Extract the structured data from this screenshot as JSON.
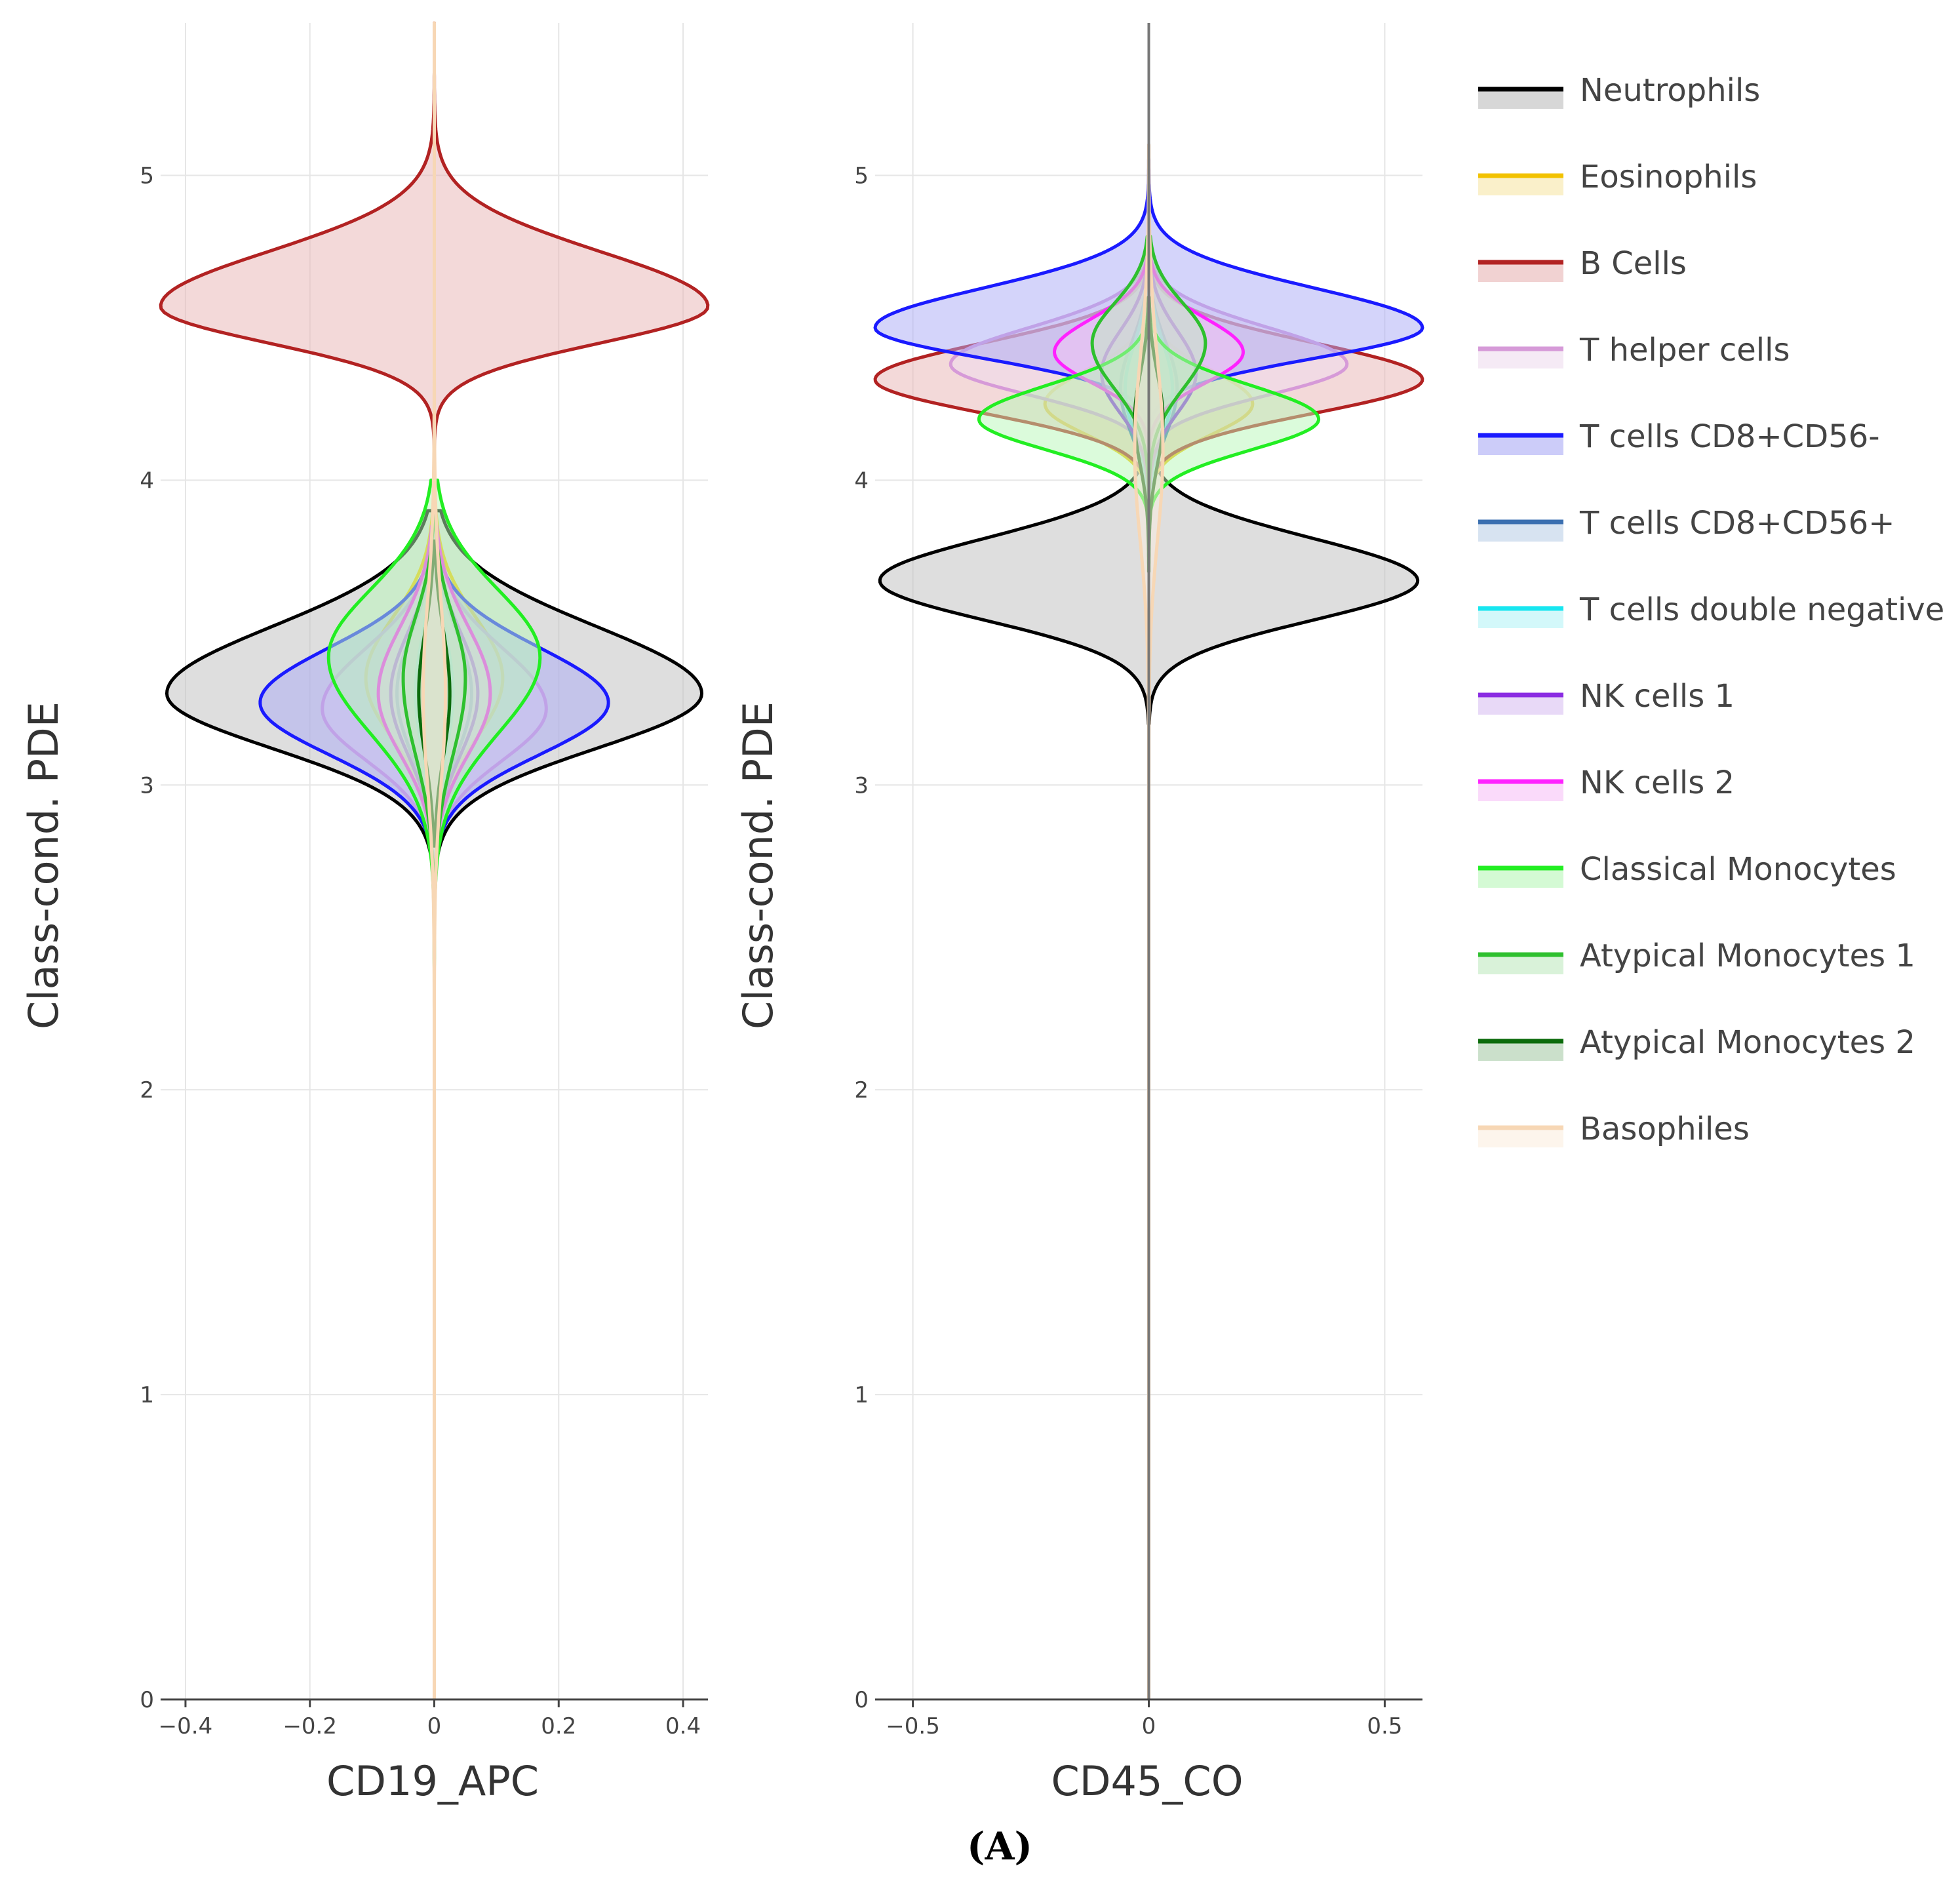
{
  "caption": "(A)",
  "chart_data": [
    {
      "type": "violin",
      "feature": "CD19_APC",
      "xlabel": "CD19_APC",
      "ylabel": "Class-cond. PDE",
      "xlim": [
        -0.44,
        0.44
      ],
      "ylim": [
        0,
        5.5
      ],
      "xticks": [
        -0.4,
        -0.2,
        0,
        0.2,
        0.4
      ],
      "xtick_labels": [
        "−0.4",
        "−0.2",
        "0",
        "0.2",
        "0.4"
      ],
      "yticks": [
        0,
        1,
        2,
        3,
        4,
        5
      ],
      "ytick_labels": [
        "0",
        "1",
        "2",
        "3",
        "4",
        "5"
      ],
      "grid": true,
      "series": [
        {
          "name": "Neutrophils",
          "mode": 3.3,
          "halfwidth": 0.43,
          "lo": 2.7,
          "hi": 3.9,
          "sl": 0.18,
          "su": 0.22
        },
        {
          "name": "Eosinophils",
          "mode": 3.35,
          "halfwidth": 0.11,
          "lo": 2.8,
          "hi": 3.9,
          "sl": 0.2,
          "su": 0.2
        },
        {
          "name": "B Cells",
          "mode": 4.57,
          "halfwidth": 0.44,
          "lo": 4.0,
          "hi": 5.5,
          "sl": 0.12,
          "su": 0.18
        },
        {
          "name": "T helper cells",
          "mode": 3.25,
          "halfwidth": 0.18,
          "lo": 2.75,
          "hi": 3.8,
          "sl": 0.17,
          "su": 0.2
        },
        {
          "name": "T cells CD8+CD56-",
          "mode": 3.27,
          "halfwidth": 0.28,
          "lo": 2.75,
          "hi": 3.75,
          "sl": 0.17,
          "su": 0.18
        },
        {
          "name": "T cells CD8+CD56+",
          "mode": 3.3,
          "halfwidth": 0.06,
          "lo": 2.8,
          "hi": 3.8,
          "sl": 0.2,
          "su": 0.2
        },
        {
          "name": "T cells double negative",
          "mode": 3.3,
          "halfwidth": 0.03,
          "lo": 2.8,
          "hi": 3.8,
          "sl": 0.2,
          "su": 0.2
        },
        {
          "name": "NK cells 1",
          "mode": 3.3,
          "halfwidth": 0.07,
          "lo": 2.8,
          "hi": 3.85,
          "sl": 0.2,
          "su": 0.2
        },
        {
          "name": "NK cells 2",
          "mode": 3.3,
          "halfwidth": 0.09,
          "lo": 2.75,
          "hi": 3.85,
          "sl": 0.2,
          "su": 0.22
        },
        {
          "name": "Classical Monocytes",
          "mode": 3.42,
          "halfwidth": 0.17,
          "lo": 2.0,
          "hi": 4.0,
          "sl": 0.25,
          "su": 0.22
        },
        {
          "name": "Atypical Monocytes 1",
          "mode": 3.35,
          "halfwidth": 0.05,
          "lo": 2.3,
          "hi": 3.9,
          "sl": 0.25,
          "su": 0.2
        },
        {
          "name": "Atypical Monocytes 2",
          "mode": 3.3,
          "halfwidth": 0.025,
          "lo": 2.8,
          "hi": 3.8,
          "sl": 0.2,
          "su": 0.2
        },
        {
          "name": "Basophiles",
          "mode": 3.3,
          "halfwidth": 0.018,
          "lo": 0.0,
          "hi": 5.5,
          "sl": 0.3,
          "su": 0.3
        }
      ]
    },
    {
      "type": "violin",
      "feature": "CD45_CO",
      "xlabel": "CD45_CO",
      "ylabel": "Class-cond. PDE",
      "xlim": [
        -0.58,
        0.58
      ],
      "ylim": [
        0,
        5.5
      ],
      "xticks": [
        -0.5,
        0,
        0.5
      ],
      "xtick_labels": [
        "−0.5",
        "0",
        "0.5"
      ],
      "yticks": [
        0,
        1,
        2,
        3,
        4,
        5
      ],
      "ytick_labels": [
        "0",
        "1",
        "2",
        "3",
        "4",
        "5"
      ],
      "grid": true,
      "series": [
        {
          "name": "Neutrophils",
          "mode": 3.67,
          "halfwidth": 0.57,
          "lo": 3.2,
          "hi": 4.1,
          "sl": 0.13,
          "su": 0.14
        },
        {
          "name": "Eosinophils",
          "mode": 4.25,
          "halfwidth": 0.22,
          "lo": 3.85,
          "hi": 4.6,
          "sl": 0.1,
          "su": 0.11
        },
        {
          "name": "B Cells",
          "mode": 4.33,
          "halfwidth": 0.58,
          "lo": 3.95,
          "hi": 4.8,
          "sl": 0.11,
          "su": 0.12
        },
        {
          "name": "T helper cells",
          "mode": 4.38,
          "halfwidth": 0.42,
          "lo": 4.0,
          "hi": 4.85,
          "sl": 0.1,
          "su": 0.12
        },
        {
          "name": "T cells CD8+CD56-",
          "mode": 4.5,
          "halfwidth": 0.58,
          "lo": 4.1,
          "hi": 5.1,
          "sl": 0.1,
          "su": 0.13
        },
        {
          "name": "T cells CD8+CD56+",
          "mode": 4.3,
          "halfwidth": 0.06,
          "lo": 3.8,
          "hi": 4.8,
          "sl": 0.15,
          "su": 0.15
        },
        {
          "name": "T cells double negative",
          "mode": 4.3,
          "halfwidth": 0.05,
          "lo": 3.8,
          "hi": 4.8,
          "sl": 0.15,
          "su": 0.15
        },
        {
          "name": "NK cells 1",
          "mode": 4.35,
          "halfwidth": 0.1,
          "lo": 3.9,
          "hi": 4.85,
          "sl": 0.13,
          "su": 0.14
        },
        {
          "name": "NK cells 2",
          "mode": 4.42,
          "halfwidth": 0.2,
          "lo": 4.1,
          "hi": 4.8,
          "sl": 0.1,
          "su": 0.11
        },
        {
          "name": "Classical Monocytes",
          "mode": 4.2,
          "halfwidth": 0.36,
          "lo": 3.9,
          "hi": 4.6,
          "sl": 0.1,
          "su": 0.11
        },
        {
          "name": "Atypical Monocytes 1",
          "mode": 4.45,
          "halfwidth": 0.12,
          "lo": 3.75,
          "hi": 4.8,
          "sl": 0.15,
          "su": 0.13
        },
        {
          "name": "Atypical Monocytes 2",
          "mode": 4.2,
          "halfwidth": 0.03,
          "lo": 3.7,
          "hi": 4.6,
          "sl": 0.15,
          "su": 0.15
        },
        {
          "name": "Basophiles",
          "mode": 4.1,
          "halfwidth": 0.03,
          "lo": 0.0,
          "hi": 5.1,
          "sl": 0.3,
          "su": 0.3
        }
      ]
    }
  ],
  "legend": {
    "placement": "right",
    "entries": [
      {
        "label": "Neutrophils",
        "color": "#000000",
        "fill": "#bdbdbd"
      },
      {
        "label": "Eosinophils",
        "color": "#f2c200",
        "fill": "#f7e6a6"
      },
      {
        "label": "B Cells",
        "color": "#b22222",
        "fill": "#e8b4b4"
      },
      {
        "label": "T helper cells",
        "color": "#d69ad8",
        "fill": "#efdcef"
      },
      {
        "label": "T cells CD8+CD56-",
        "color": "#1a1aff",
        "fill": "#aaaaf5"
      },
      {
        "label": "T cells CD8+CD56+",
        "color": "#3a6fb0",
        "fill": "#bcd1e8"
      },
      {
        "label": "T cells double negative",
        "color": "#16e6f0",
        "fill": "#b6f4f7"
      },
      {
        "label": "NK cells 1",
        "color": "#8a2be2",
        "fill": "#d8c0f2"
      },
      {
        "label": "NK cells 2",
        "color": "#ff22ff",
        "fill": "#f7c2f7"
      },
      {
        "label": "Classical Monocytes",
        "color": "#22ee22",
        "fill": "#b8f7b8"
      },
      {
        "label": "Atypical Monocytes 1",
        "color": "#2ec02e",
        "fill": "#bfe9bf"
      },
      {
        "label": "Atypical Monocytes 2",
        "color": "#0b6b0b",
        "fill": "#a9cca9"
      },
      {
        "label": "Basophiles",
        "color": "#f7d7b5",
        "fill": "#fbeee0"
      }
    ]
  }
}
